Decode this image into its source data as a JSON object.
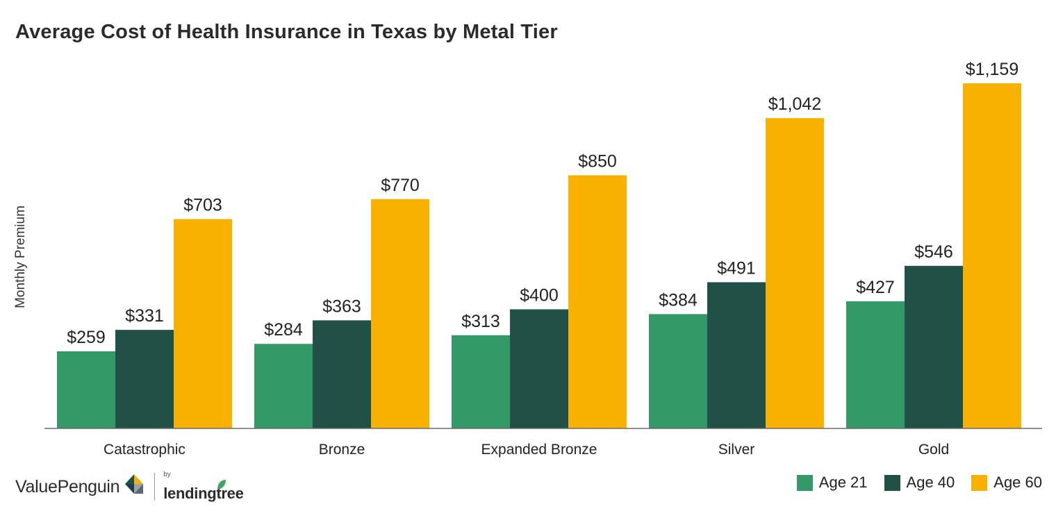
{
  "chart_data": {
    "type": "bar",
    "title": "Average Cost of Health Insurance in Texas by Metal Tier",
    "xlabel": "",
    "ylabel": "Monthly Premium",
    "categories": [
      "Catastrophic",
      "Bronze",
      "Expanded Bronze",
      "Silver",
      "Gold"
    ],
    "series": [
      {
        "name": "Age 21",
        "color": "#339966",
        "values": [
          259,
          284,
          313,
          384,
          427
        ],
        "labels": [
          "$259",
          "$284",
          "$313",
          "$384",
          "$427"
        ]
      },
      {
        "name": "Age 40",
        "color": "#215046",
        "values": [
          331,
          363,
          400,
          491,
          546
        ],
        "labels": [
          "$331",
          "$363",
          "$400",
          "$491",
          "$546"
        ]
      },
      {
        "name": "Age 60",
        "color": "#f9b100",
        "values": [
          703,
          770,
          850,
          1042,
          1159
        ],
        "labels": [
          "$703",
          "$770",
          "$850",
          "$1,042",
          "$1,159"
        ]
      }
    ],
    "ylim": [
      0,
      1159
    ],
    "grid": false,
    "legend_position": "bottom-right"
  },
  "branding": {
    "primary": "ValuePenguin",
    "by": "by",
    "partner": "lendingtree"
  }
}
